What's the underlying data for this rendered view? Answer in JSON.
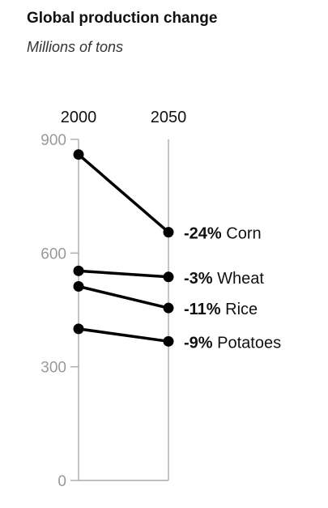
{
  "title": "Global production change",
  "subtitle": "Millions of tons",
  "chart_data": {
    "type": "line",
    "title": "Global production change",
    "subtitle": "Millions of tons",
    "x": [
      "2000",
      "2050"
    ],
    "ylim": [
      0,
      900
    ],
    "yticks": [
      0,
      300,
      600,
      900
    ],
    "grid": false,
    "series": [
      {
        "name": "Corn",
        "values": [
          860,
          655
        ],
        "change": "-24%"
      },
      {
        "name": "Wheat",
        "values": [
          553,
          537
        ],
        "change": "-3%"
      },
      {
        "name": "Rice",
        "values": [
          512,
          455
        ],
        "change": "-11%"
      },
      {
        "name": "Potatoes",
        "values": [
          400,
          367
        ],
        "change": "-9%"
      }
    ],
    "colors": {
      "line": "#000000",
      "axis": "#aaaaaa",
      "tick_label": "#999999",
      "year_label": "#111111"
    }
  }
}
